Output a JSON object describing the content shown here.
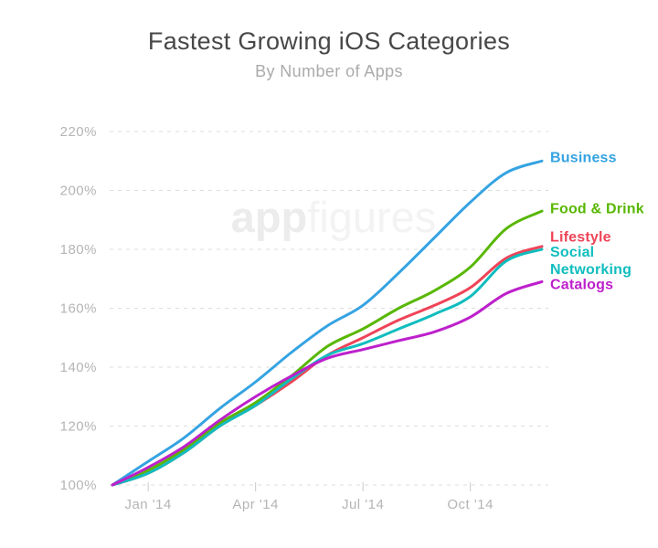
{
  "header": {
    "title": "Fastest Growing iOS Categories",
    "subtitle": "By Number of Apps"
  },
  "watermark": {
    "part_bold": "app",
    "part_light": "figures"
  },
  "chart_data": {
    "type": "line",
    "title": "Fastest Growing iOS Categories",
    "subtitle": "By Number of Apps",
    "x": [
      "Dec '13",
      "Jan '14",
      "Feb '14",
      "Mar '14",
      "Apr '14",
      "May '14",
      "Jun '14",
      "Jul '14",
      "Aug '14",
      "Sep '14",
      "Oct '14",
      "Nov '14",
      "Dec '14"
    ],
    "x_tick_labels": [
      {
        "label": "Jan '14",
        "index": 1
      },
      {
        "label": "Apr '14",
        "index": 4
      },
      {
        "label": "Jul '14",
        "index": 7
      },
      {
        "label": "Oct '14",
        "index": 10
      }
    ],
    "y_ticks": [
      100,
      120,
      140,
      160,
      180,
      200,
      220
    ],
    "y_tick_suffix": "%",
    "ylim": [
      100,
      220
    ],
    "grid": "horizontal-dashed",
    "legend_position": "right-of-line-ends",
    "colors": {
      "grid": "#dcdcdc",
      "tick": "#c9c9c9",
      "axis_text": "#b5b5b5"
    },
    "series": [
      {
        "name": "Business",
        "color": "#35a3e2",
        "label_dy": -3,
        "values": [
          100,
          108,
          116,
          126,
          135,
          145,
          154,
          161,
          172,
          184,
          196,
          206,
          210
        ]
      },
      {
        "name": "Food & Drink",
        "color": "#58b700",
        "label_dy": -2,
        "values": [
          100,
          105,
          112,
          121,
          128,
          137,
          147,
          153,
          160,
          166,
          174,
          187,
          193
        ]
      },
      {
        "name": "Lifestyle",
        "color": "#ef4458",
        "label_dy": -10,
        "values": [
          100,
          104,
          111,
          120,
          127,
          135,
          144,
          150,
          156,
          161,
          167,
          177,
          181
        ]
      },
      {
        "name": "Social Networking",
        "color": "#10bdbe",
        "label_dy": 13,
        "values": [
          100,
          104,
          111,
          120,
          127,
          136,
          144,
          148,
          153,
          158,
          164,
          176,
          180
        ]
      },
      {
        "name": "Catalogs",
        "color": "#bd20cb",
        "label_dy": 4,
        "values": [
          100,
          106,
          113,
          122,
          130,
          137,
          143,
          146,
          149,
          152,
          157,
          165,
          169
        ]
      }
    ]
  }
}
